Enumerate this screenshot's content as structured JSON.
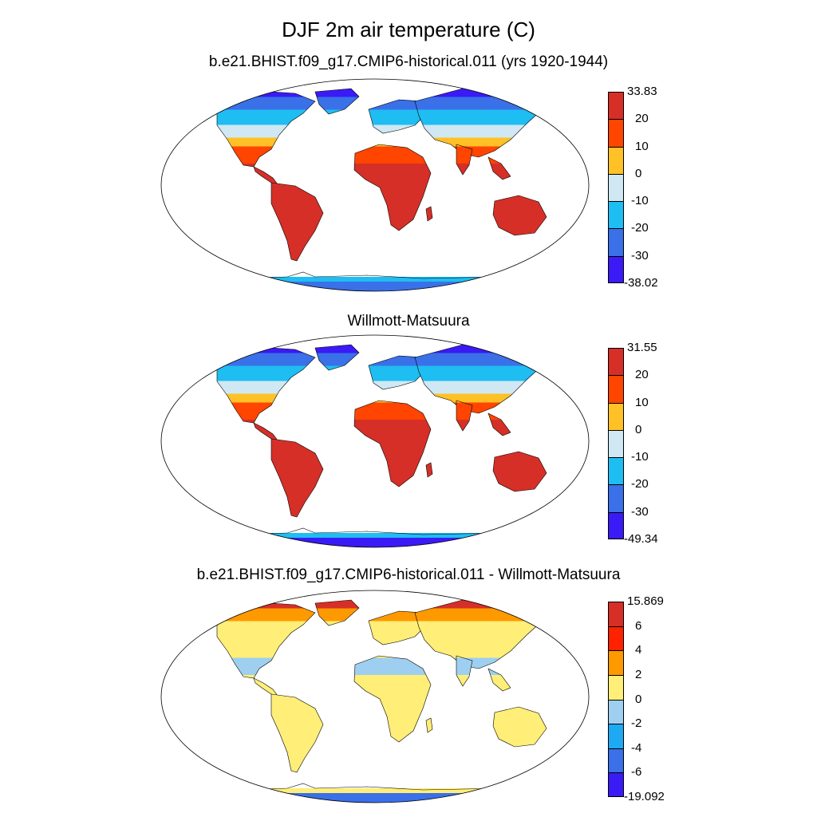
{
  "figure": {
    "title": "DJF 2m air temperature (C)"
  },
  "panels": [
    {
      "title": "b.e21.BHIST.f09_g17.CMIP6-historical.011 (yrs 1920-1944)",
      "colorbar": {
        "labels": [
          "33.83",
          "20",
          "10",
          "0",
          "-10",
          "-20",
          "-30",
          "-38.02"
        ],
        "colors": [
          "#d62f27",
          "#ff4500",
          "#ffc125",
          "#cfe8f3",
          "#1ebdf2",
          "#3a70e8",
          "#3a1af5"
        ]
      },
      "land_color_scheme": {
        "arctic": "#3a1af5",
        "high_lat": "#3a70e8",
        "mid_high": "#1ebdf2",
        "mid": "#cfe8f3",
        "subtrop": "#ffc125",
        "warm": "#ff4500",
        "tropics": "#d62f27",
        "antarctica": "#3a70e8",
        "antarctica_coast": "#1ebdf2"
      }
    },
    {
      "title": "Willmott-Matsuura",
      "colorbar": {
        "labels": [
          "31.55",
          "20",
          "10",
          "0",
          "-10",
          "-20",
          "-30",
          "-49.34"
        ],
        "colors": [
          "#d62f27",
          "#ff4500",
          "#ffc125",
          "#cfe8f3",
          "#1ebdf2",
          "#3a70e8",
          "#3a1af5"
        ]
      },
      "land_color_scheme": {
        "arctic": "#3a1af5",
        "high_lat": "#3a70e8",
        "mid_high": "#1ebdf2",
        "mid": "#cfe8f3",
        "subtrop": "#ffc125",
        "warm": "#ff4500",
        "tropics": "#d62f27",
        "antarctica": "#3a1af5",
        "antarctica_coast": "#1ebdf2"
      }
    },
    {
      "title": "b.e21.BHIST.f09_g17.CMIP6-historical.011 - Willmott-Matsuura",
      "colorbar": {
        "labels": [
          "15.869",
          "6",
          "4",
          "2",
          "0",
          "-2",
          "-4",
          "-6",
          "-19.092"
        ],
        "colors": [
          "#d62f27",
          "#ff2200",
          "#ff9900",
          "#ffee77",
          "#9ecff0",
          "#1eaaf2",
          "#3a70e8",
          "#3a1af5"
        ]
      },
      "land_color_scheme": {
        "arctic": "#d62f27",
        "high_lat": "#ff9900",
        "mid_high": "#ffee77",
        "mid": "#ffee77",
        "subtrop": "#ffee77",
        "warm": "#9ecff0",
        "tropics": "#ffee77",
        "antarctica": "#3a70e8",
        "antarctica_coast": "#ffee77"
      }
    }
  ]
}
